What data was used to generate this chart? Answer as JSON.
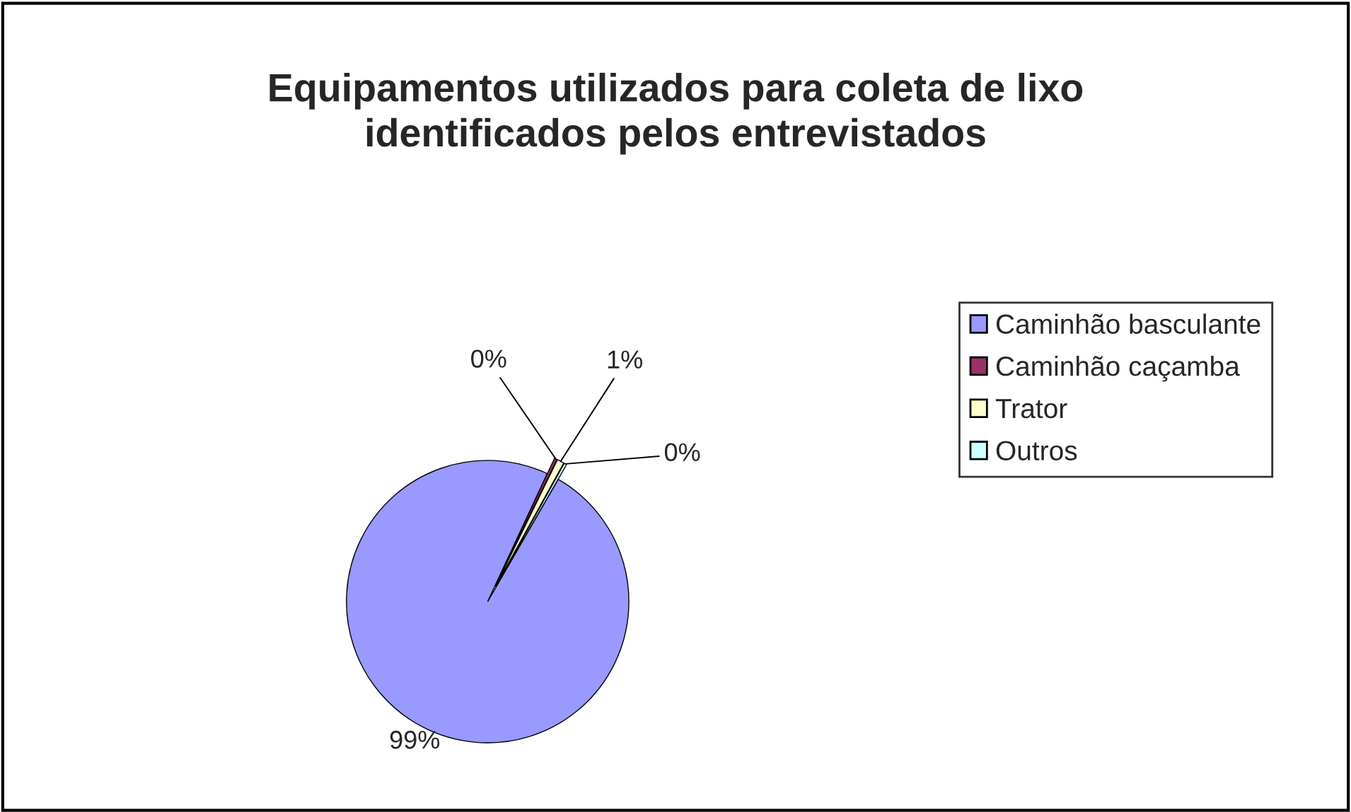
{
  "chart_data": {
    "type": "pie",
    "title": "Equipamentos utilizados para coleta de lixo\nidentificados pelos entrevistados",
    "categories": [
      "Caminhão basculante",
      "Caminhão caçamba",
      "Trator",
      "Outros"
    ],
    "values": [
      98.6,
      0.3,
      0.8,
      0.3
    ],
    "value_labels": [
      "99%",
      "0%",
      "1%",
      "0%"
    ],
    "colors": [
      "#9999ff",
      "#993366",
      "#ffffcc",
      "#ccffff"
    ],
    "legend": "right"
  }
}
